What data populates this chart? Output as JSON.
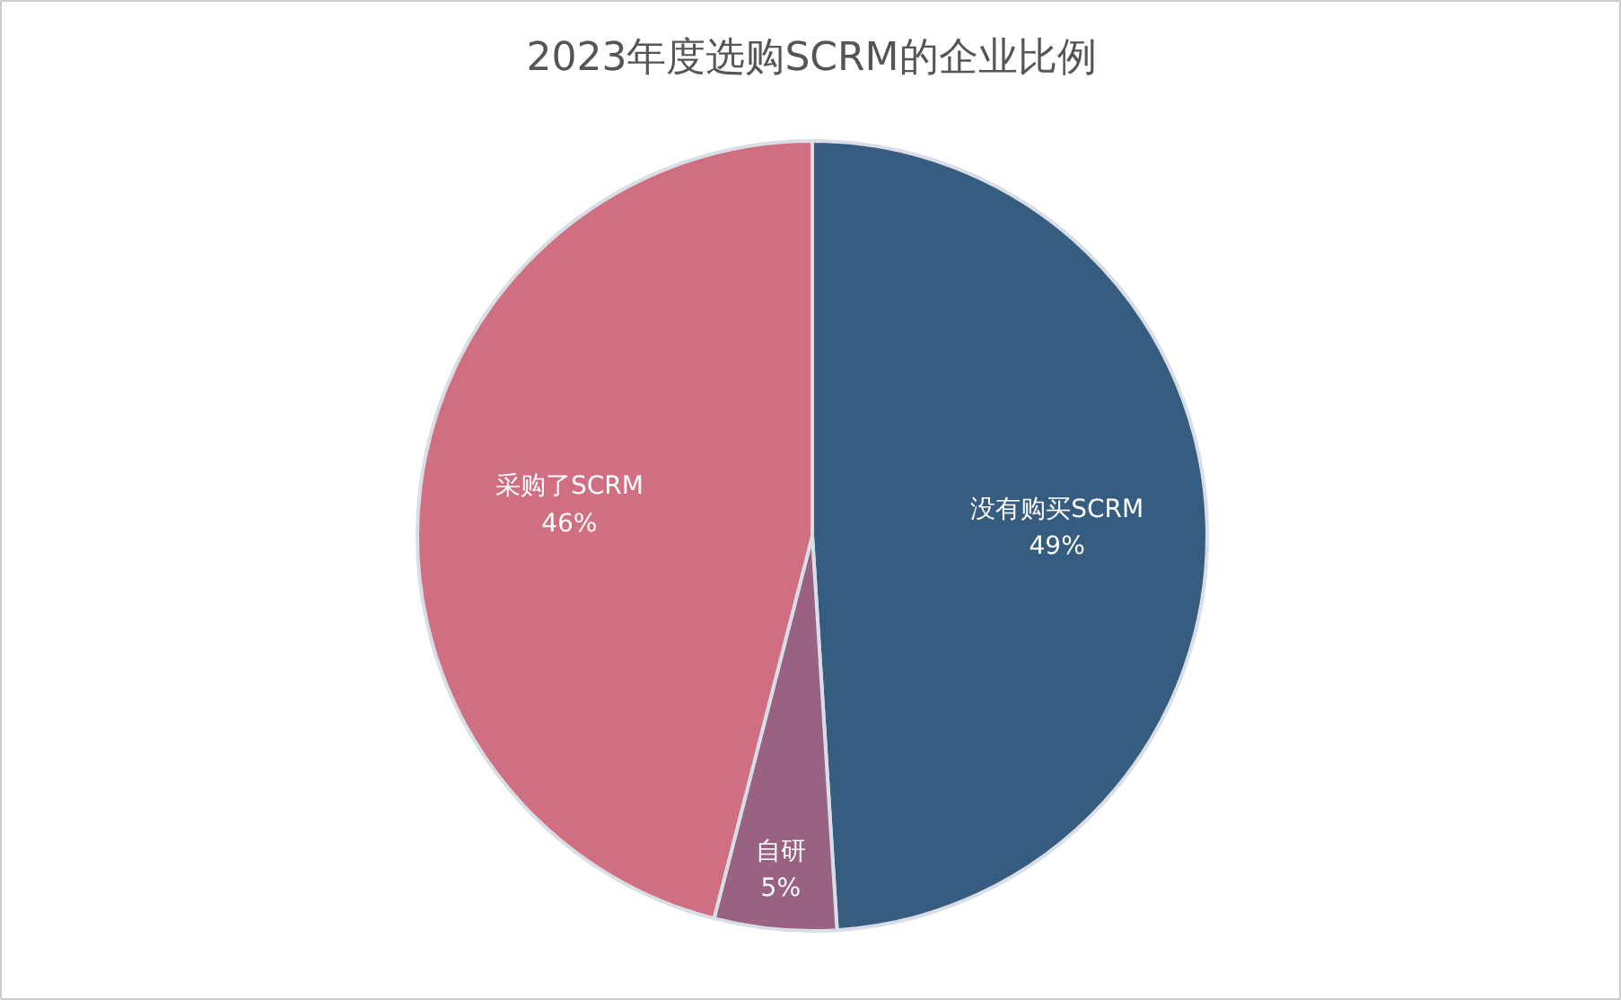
{
  "chart_data": {
    "type": "pie",
    "title": "2023年度选购SCRM的企业比例",
    "categories": [
      "没有购买SCRM",
      "自研",
      "采购了SCRM"
    ],
    "values": [
      49,
      5,
      46
    ],
    "colors": [
      "#365d7f",
      "#9a6282",
      "#d06f82"
    ],
    "value_labels": [
      "49%",
      "5%",
      "46%"
    ]
  }
}
